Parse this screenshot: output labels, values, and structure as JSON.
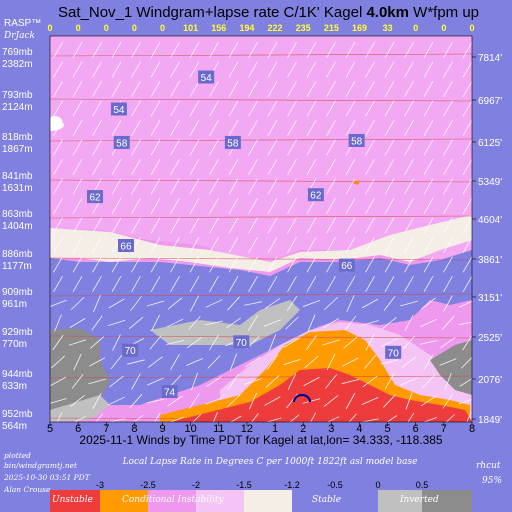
{
  "chart_data": {
    "type": "heatmap",
    "title_parts": {
      "main": "Sat_Nov_1 Windgram+lapse rate C/1K'  Kagel ",
      "height": "4.0km",
      "tail": "  W*fpm up"
    },
    "logo_lines": [
      "RASP™",
      "DrJack"
    ],
    "wstar_values": [
      "0",
      "0",
      "0",
      "0",
      "0",
      "101",
      "156",
      "194",
      "222",
      "235",
      "215",
      "169",
      "33",
      "0",
      "0",
      "0"
    ],
    "x_ticks": [
      "5",
      "6",
      "7",
      "8",
      "9",
      "10",
      "11",
      "12",
      "1",
      "2",
      "3",
      "4",
      "5",
      "6",
      "7",
      "8"
    ],
    "left_levels": [
      {
        "mb": "769mb",
        "m": "2382m"
      },
      {
        "mb": "793mb",
        "m": "2124m"
      },
      {
        "mb": "818mb",
        "m": "1867m"
      },
      {
        "mb": "841mb",
        "m": "1631m"
      },
      {
        "mb": "863mb",
        "m": "1404m"
      },
      {
        "mb": "886mb",
        "m": "1177m"
      },
      {
        "mb": "909mb",
        "m": "961m"
      },
      {
        "mb": "929mb",
        "m": "770m"
      },
      {
        "mb": "944mb",
        "m": "633m"
      },
      {
        "mb": "952mb",
        "m": "564m"
      }
    ],
    "right_levels": [
      "7814'",
      "6967'",
      "6125'",
      "5349'",
      "4604'",
      "3861'",
      "3151'",
      "2525'",
      "2076'",
      "1849'"
    ],
    "wind_labels": [
      {
        "text": "54",
        "x": 5.55,
        "level": 0.5
      },
      {
        "text": "54",
        "x": 2.45,
        "level": 1.25
      },
      {
        "text": "58",
        "x": 10.9,
        "level": 2.0
      },
      {
        "text": "58",
        "x": 2.55,
        "level": 2.05
      },
      {
        "text": "58",
        "x": 6.5,
        "level": 2.05
      },
      {
        "text": "62",
        "x": 9.45,
        "level": 3.4
      },
      {
        "text": "62",
        "x": 1.6,
        "level": 3.45
      },
      {
        "text": "66",
        "x": 10.55,
        "level": 5.2
      },
      {
        "text": "66",
        "x": 2.7,
        "level": 4.7
      },
      {
        "text": "70",
        "x": 12.2,
        "level": 7.4
      },
      {
        "text": "70",
        "x": 2.85,
        "level": 7.35
      },
      {
        "text": "70",
        "x": 6.8,
        "level": 7.15
      },
      {
        "text": "74",
        "x": 4.25,
        "level": 8.35
      }
    ],
    "xlabel": "2025-11-1 Winds by Time PDT for Kagel at lat,lon= 34.333, -118.385",
    "plotted_note": [
      "plotted",
      "bin/windgramtj.net",
      "2025-10-30 03:51 PDT",
      "Alan Crouse"
    ],
    "legend_title": "Local Lapse Rate in Degrees C per 1000ft  1822ft asl model base",
    "rhcut": [
      "rhcut",
      "95%"
    ],
    "legend_ticks": [
      "-3",
      "-2.5",
      "-2",
      "-1.5",
      "-1.2",
      "-0.5",
      "0",
      "0.5"
    ],
    "legend_categories": [
      {
        "label": "Unstable",
        "color": "#ee3b3b"
      },
      {
        "label": "Conditional Instability",
        "color": "#ff9a00"
      },
      {
        "label": "Stable",
        "color": "#f5e8e8"
      },
      {
        "label": "Inverted",
        "color": "#9a9a9a"
      }
    ],
    "colors": {
      "background": "#8080e0",
      "unstable": "#ee3b3b",
      "orange": "#ff9a00",
      "pink": "#ee99ee",
      "lightpink": "#f4c4f4",
      "stable": "#f5eee6",
      "gray": "#8c8c8c",
      "lightgray": "#c0c0c0",
      "text_blue": "#ffff30",
      "level_line": "#d04040"
    }
  }
}
